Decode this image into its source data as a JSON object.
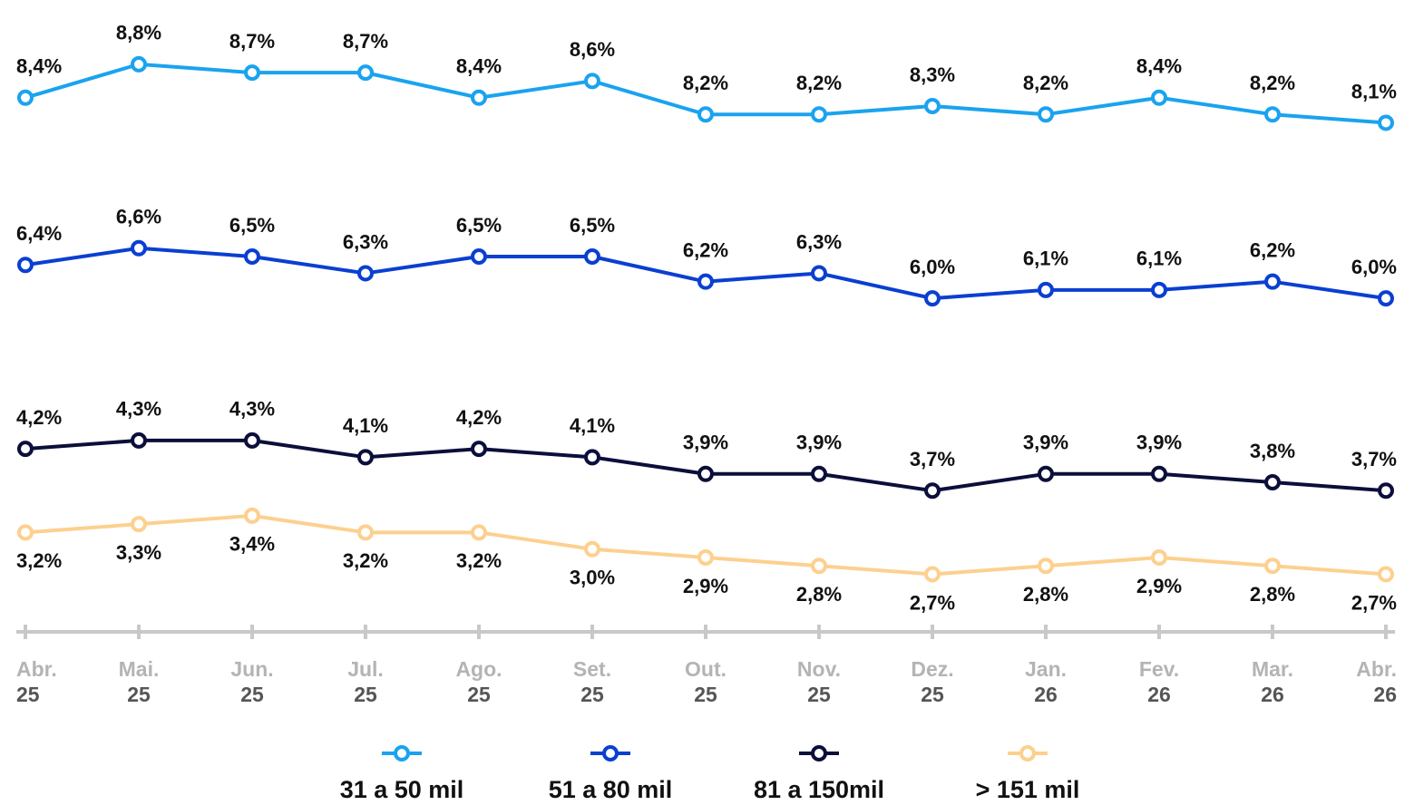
{
  "chart_data": {
    "type": "line",
    "categories": [
      [
        "Abr.",
        "25"
      ],
      [
        "Mai.",
        "25"
      ],
      [
        "Jun.",
        "25"
      ],
      [
        "Jul.",
        "25"
      ],
      [
        "Ago.",
        "25"
      ],
      [
        "Set.",
        "25"
      ],
      [
        "Out.",
        "25"
      ],
      [
        "Nov.",
        "25"
      ],
      [
        "Dez.",
        "25"
      ],
      [
        "Jan.",
        "26"
      ],
      [
        "Fev.",
        "26"
      ],
      [
        "Mar.",
        "26"
      ],
      [
        "Abr.",
        "26"
      ]
    ],
    "series": [
      {
        "name": "31 a 50 mil",
        "color": "#1aa3ef",
        "values": [
          8.4,
          8.8,
          8.7,
          8.7,
          8.4,
          8.6,
          8.2,
          8.2,
          8.3,
          8.2,
          8.4,
          8.2,
          8.1
        ],
        "value_labels": [
          "8,4%",
          "8,8%",
          "8,7%",
          "8,7%",
          "8,4%",
          "8,6%",
          "8,2%",
          "8,2%",
          "8,3%",
          "8,2%",
          "8,4%",
          "8,2%",
          "8,1%"
        ]
      },
      {
        "name": "51 a 80 mil",
        "color": "#0a3fd1",
        "values": [
          6.4,
          6.6,
          6.5,
          6.3,
          6.5,
          6.5,
          6.2,
          6.3,
          6.0,
          6.1,
          6.1,
          6.2,
          6.0
        ],
        "value_labels": [
          "6,4%",
          "6,6%",
          "6,5%",
          "6,3%",
          "6,5%",
          "6,5%",
          "6,2%",
          "6,3%",
          "6,0%",
          "6,1%",
          "6,1%",
          "6,2%",
          "6,0%"
        ]
      },
      {
        "name": "81 a 150mil",
        "color": "#0b0f3a",
        "values": [
          4.2,
          4.3,
          4.3,
          4.1,
          4.2,
          4.1,
          3.9,
          3.9,
          3.7,
          3.9,
          3.9,
          3.8,
          3.7
        ],
        "value_labels": [
          "4,2%",
          "4,3%",
          "4,3%",
          "4,1%",
          "4,2%",
          "4,1%",
          "3,9%",
          "3,9%",
          "3,7%",
          "3,9%",
          "3,9%",
          "3,8%",
          "3,7%"
        ]
      },
      {
        "name": "> 151 mil",
        "color": "#fdd08f",
        "values": [
          3.2,
          3.3,
          3.4,
          3.2,
          3.2,
          3.0,
          2.9,
          2.8,
          2.7,
          2.8,
          2.9,
          2.8,
          2.7
        ],
        "value_labels": [
          "3,2%",
          "3,3%",
          "3,4%",
          "3,2%",
          "3,2%",
          "3,0%",
          "2,9%",
          "2,8%",
          "2,7%",
          "2,8%",
          "2,9%",
          "2,8%",
          "2,7%"
        ]
      }
    ],
    "ylim": [
      2,
      9.2
    ]
  }
}
